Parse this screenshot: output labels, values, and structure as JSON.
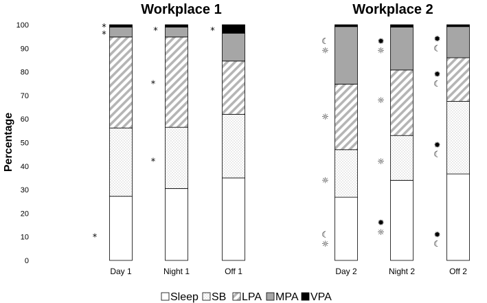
{
  "chart_data": {
    "type": "bar",
    "stacked": true,
    "ylabel": "Percentage",
    "ylim": [
      0,
      100
    ],
    "yticks": [
      0,
      10,
      20,
      30,
      40,
      50,
      60,
      70,
      80,
      90,
      100
    ],
    "grid": false,
    "legend_position": "bottom",
    "series_names": [
      "Sleep",
      "SB",
      "LPA",
      "MPA",
      "VPA"
    ],
    "panels": [
      {
        "title": "Workplace 1",
        "categories": [
          "Day 1",
          "Night 1",
          "Off 1"
        ],
        "series": [
          {
            "name": "Sleep",
            "values": [
              27.2,
              30.5,
              35.0
            ]
          },
          {
            "name": "SB",
            "values": [
              29.0,
              26.0,
              27.0
            ]
          },
          {
            "name": "LPA",
            "values": [
              38.6,
              38.3,
              22.6
            ]
          },
          {
            "name": "MPA",
            "values": [
              4.2,
              4.2,
              11.8
            ]
          },
          {
            "name": "VPA",
            "values": [
              1.0,
              1.0,
              3.6
            ]
          }
        ],
        "annotations": [
          {
            "category": "Day 1",
            "y": 11,
            "symbol": "*"
          },
          {
            "category": "Day 1",
            "y": 97,
            "symbol": "*",
            "offset": "right"
          },
          {
            "category": "Day 1",
            "y": 100,
            "symbol": "*",
            "offset": "right"
          },
          {
            "category": "Night 1",
            "y": 43,
            "symbol": "*"
          },
          {
            "category": "Night 1",
            "y": 76,
            "symbol": "*"
          },
          {
            "category": "Night 1",
            "y": 98.5,
            "symbol": "*"
          },
          {
            "category": "Off 1",
            "y": 98.5,
            "symbol": "*"
          }
        ]
      },
      {
        "title": "Workplace 2",
        "categories": [
          "Day 2",
          "Night 2",
          "Off 2"
        ],
        "series": [
          {
            "name": "Sleep",
            "values": [
              26.8,
              34.0,
              36.7
            ]
          },
          {
            "name": "SB",
            "values": [
              20.2,
              19.0,
              30.8
            ]
          },
          {
            "name": "LPA",
            "values": [
              27.8,
              27.8,
              18.5
            ]
          },
          {
            "name": "MPA",
            "values": [
              24.4,
              18.2,
              13.2
            ]
          },
          {
            "name": "VPA",
            "values": [
              0.8,
              1.0,
              0.8
            ]
          }
        ],
        "annotations": [
          {
            "category": "Day 2",
            "y": 93,
            "symbol": "☾"
          },
          {
            "category": "Day 2",
            "y": 89,
            "symbol": "☼"
          },
          {
            "category": "Day 2",
            "y": 61,
            "symbol": "☼"
          },
          {
            "category": "Day 2",
            "y": 34,
            "symbol": "☼"
          },
          {
            "category": "Day 2",
            "y": 11,
            "symbol": "☾"
          },
          {
            "category": "Day 2",
            "y": 7,
            "symbol": "☼"
          },
          {
            "category": "Night 2",
            "y": 93,
            "symbol": "✹"
          },
          {
            "category": "Night 2",
            "y": 89,
            "symbol": "☼"
          },
          {
            "category": "Night 2",
            "y": 68,
            "symbol": "☼"
          },
          {
            "category": "Night 2",
            "y": 42,
            "symbol": "☼"
          },
          {
            "category": "Night 2",
            "y": 16,
            "symbol": "✹"
          },
          {
            "category": "Night 2",
            "y": 12,
            "symbol": "☼"
          },
          {
            "category": "Off 2",
            "y": 94,
            "symbol": "✹"
          },
          {
            "category": "Off 2",
            "y": 90,
            "symbol": "☾"
          },
          {
            "category": "Off 2",
            "y": 79,
            "symbol": "✹"
          },
          {
            "category": "Off 2",
            "y": 75,
            "symbol": "☾"
          },
          {
            "category": "Off 2",
            "y": 49,
            "symbol": "✹"
          },
          {
            "category": "Off 2",
            "y": 45,
            "symbol": "☾"
          },
          {
            "category": "Off 2",
            "y": 11,
            "symbol": "✹"
          },
          {
            "category": "Off 2",
            "y": 7,
            "symbol": "☾"
          }
        ]
      }
    ]
  }
}
